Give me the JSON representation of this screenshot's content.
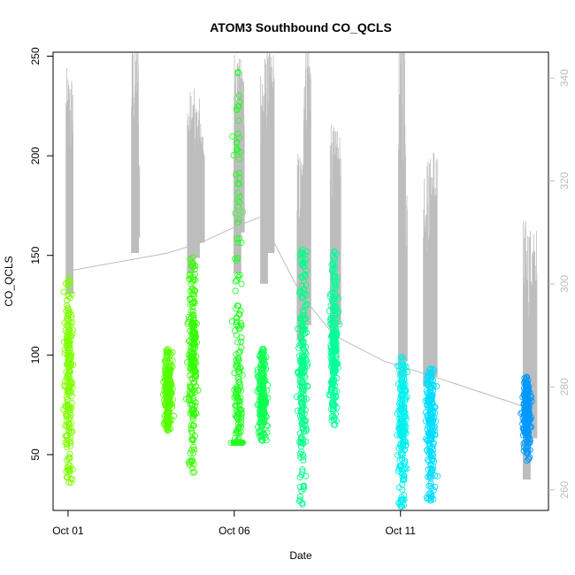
{
  "chart_data": {
    "type": "scatter",
    "title": "ATOM3 Southbound CO_QCLS",
    "xlabel": "Date",
    "ylabel": "CO_QCLS",
    "x_ticks": [
      "Oct 01",
      "Oct 06",
      "Oct 11"
    ],
    "x_tick_values": [
      1.0,
      6.0,
      11.0
    ],
    "xlim": [
      0.55,
      15.45
    ],
    "ylim_left": [
      22,
      252
    ],
    "y_ticks_left": [
      50,
      100,
      150,
      200,
      250
    ],
    "ylim_right": [
      256,
      345
    ],
    "y_ticks_right": [
      260,
      280,
      300,
      320,
      340
    ],
    "grid": false,
    "scatter_clusters": [
      {
        "x": 1.02,
        "ymin": 36,
        "ymax": 139,
        "center": 90,
        "color": "#7fff00"
      },
      {
        "x": 4.0,
        "ymin": 62,
        "ymax": 103,
        "center": 82,
        "color": "#55ff00"
      },
      {
        "x": 4.75,
        "ymin": 41,
        "ymax": 149,
        "center": 100,
        "color": "#33ff00"
      },
      {
        "x": 6.12,
        "ymin": 56,
        "ymax": 242,
        "center": 65,
        "color": "#22ff22"
      },
      {
        "x": 6.85,
        "ymin": 57,
        "ymax": 103,
        "center": 80,
        "color": "#11ff55"
      },
      {
        "x": 8.05,
        "ymin": 25,
        "ymax": 153,
        "center": 95,
        "color": "#00ff88"
      },
      {
        "x": 9.0,
        "ymin": 65,
        "ymax": 152,
        "center": 100,
        "color": "#00ff99"
      },
      {
        "x": 11.05,
        "ymin": 24,
        "ymax": 99,
        "center": 70,
        "color": "#00f0ee"
      },
      {
        "x": 11.9,
        "ymin": 27,
        "ymax": 93,
        "center": 70,
        "color": "#00ddff"
      },
      {
        "x": 14.8,
        "ymin": 47,
        "ymax": 89,
        "center": 70,
        "color": "#0099ff"
      }
    ],
    "right_axis_line": {
      "color": "#bdbdbd",
      "points": [
        {
          "x": 1.0,
          "y": 302.5
        },
        {
          "x": 4.0,
          "y": 306
        },
        {
          "x": 5.0,
          "y": 308
        },
        {
          "x": 6.0,
          "y": 311
        },
        {
          "x": 6.8,
          "y": 313
        },
        {
          "x": 8.0,
          "y": 298
        },
        {
          "x": 9.0,
          "y": 290
        },
        {
          "x": 10.5,
          "y": 285
        },
        {
          "x": 11.0,
          "y": 284
        },
        {
          "x": 12.0,
          "y": 282
        },
        {
          "x": 14.8,
          "y": 276
        }
      ],
      "spikes": [
        {
          "x": 1.05,
          "base": 298,
          "top": 342
        },
        {
          "x": 3.02,
          "base": 306,
          "top": 348
        },
        {
          "x": 3.05,
          "base": 309,
          "top": 324
        },
        {
          "x": 4.7,
          "base": 302,
          "top": 338
        },
        {
          "x": 4.85,
          "base": 305,
          "top": 336
        },
        {
          "x": 5.0,
          "base": 308,
          "top": 332
        },
        {
          "x": 6.1,
          "base": 302,
          "top": 345
        },
        {
          "x": 6.2,
          "base": 310,
          "top": 344
        },
        {
          "x": 6.9,
          "base": 300,
          "top": 345
        },
        {
          "x": 7.1,
          "base": 306,
          "top": 346
        },
        {
          "x": 8.0,
          "base": 289,
          "top": 326
        },
        {
          "x": 8.2,
          "base": 292,
          "top": 352
        },
        {
          "x": 9.0,
          "base": 290,
          "top": 331
        },
        {
          "x": 9.1,
          "base": 292,
          "top": 330
        },
        {
          "x": 11.05,
          "base": 282,
          "top": 355
        },
        {
          "x": 11.1,
          "base": 285,
          "top": 320
        },
        {
          "x": 11.8,
          "base": 280,
          "top": 325
        },
        {
          "x": 12.0,
          "base": 282,
          "top": 328
        },
        {
          "x": 14.8,
          "base": 262,
          "top": 313
        },
        {
          "x": 15.0,
          "base": 270,
          "top": 311
        }
      ]
    }
  }
}
